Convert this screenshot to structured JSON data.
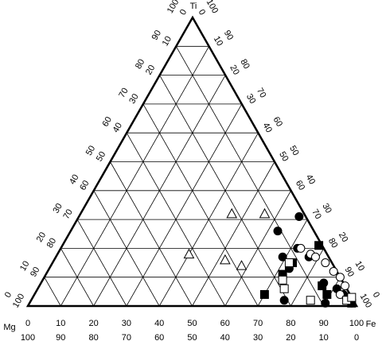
{
  "chart_data": {
    "type": "ternary",
    "axes": {
      "top": "Ti",
      "left": "Mg",
      "right": "Fe"
    },
    "ticks": [
      0,
      10,
      20,
      30,
      40,
      50,
      60,
      70,
      80,
      90,
      100
    ],
    "grid": true,
    "series": [
      {
        "marker": "triangle",
        "filled": false,
        "color": "#000000",
        "ti": [
          32,
          32,
          18,
          16,
          14
        ],
        "fe": [
          46,
          56,
          40,
          52,
          58
        ]
      },
      {
        "marker": "circle",
        "filled": true,
        "color": "#000000",
        "ti": [
          31,
          26,
          20,
          17,
          17,
          13,
          8,
          2,
          1,
          4,
          1,
          6
        ],
        "fe": [
          67,
          63,
          72,
          77,
          69,
          73,
          86,
          77,
          90,
          94,
          98,
          91
        ]
      },
      {
        "marker": "square",
        "filled": true,
        "color": "#000000",
        "ti": [
          21,
          15,
          11,
          7,
          4,
          4,
          1
        ],
        "fe": [
          78,
          73,
          72,
          86,
          70,
          89,
          98
        ]
      },
      {
        "marker": "circle",
        "filled": false,
        "color": "#000000",
        "ti": [
          20,
          18,
          17,
          15,
          12,
          10,
          4,
          7
        ],
        "fe": [
          73,
          77,
          79,
          83,
          87,
          90,
          93,
          93
        ]
      },
      {
        "marker": "square",
        "filled": false,
        "color": "#000000",
        "ti": [
          15,
          9,
          6,
          2,
          2,
          3
        ],
        "fe": [
          72,
          73,
          75,
          85,
          96,
          97
        ]
      }
    ]
  }
}
